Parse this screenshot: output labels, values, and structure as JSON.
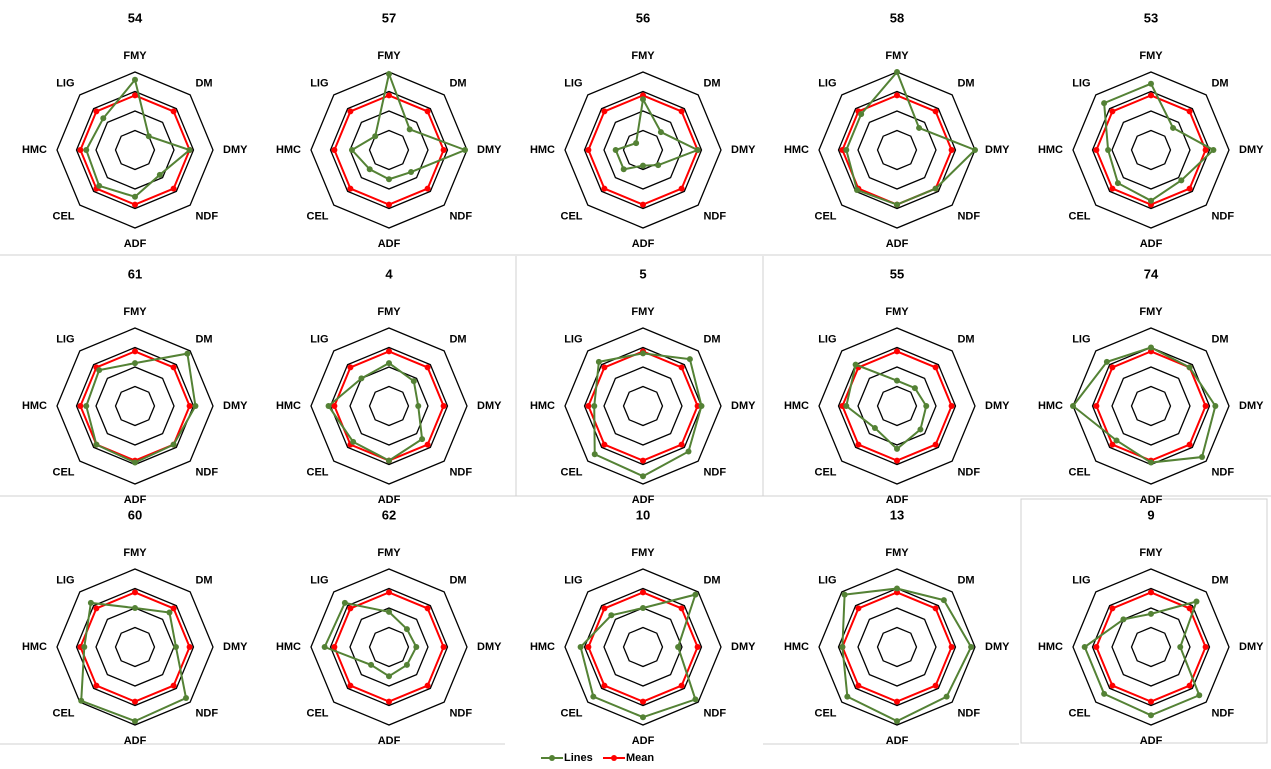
{
  "chart_data": [
    {
      "type": "radar",
      "title": "54",
      "categories": [
        "FMY",
        "DM",
        "DMY",
        "NDF",
        "ADF",
        "CEL",
        "HMC",
        "LIG"
      ],
      "rlim": [
        0,
        4
      ],
      "rticks": [
        1,
        2,
        3,
        4
      ],
      "series": [
        {
          "name": "Lines",
          "color": "#548235",
          "values": [
            3.6,
            1.0,
            2.8,
            1.8,
            2.4,
            2.6,
            2.5,
            2.3
          ]
        },
        {
          "name": "Mean",
          "color": "#ff0000",
          "values": [
            2.8,
            2.8,
            2.8,
            2.8,
            2.8,
            2.8,
            2.8,
            2.8
          ]
        }
      ]
    },
    {
      "type": "radar",
      "title": "57",
      "categories": [
        "FMY",
        "DM",
        "DMY",
        "NDF",
        "ADF",
        "CEL",
        "HMC",
        "LIG"
      ],
      "rlim": [
        0,
        4
      ],
      "rticks": [
        1,
        2,
        3,
        4
      ],
      "series": [
        {
          "name": "Lines",
          "color": "#548235",
          "values": [
            3.9,
            1.5,
            3.9,
            1.6,
            1.5,
            1.4,
            1.9,
            1.0
          ]
        },
        {
          "name": "Mean",
          "color": "#ff0000",
          "values": [
            2.8,
            2.8,
            2.8,
            2.8,
            2.8,
            2.8,
            2.8,
            2.8
          ]
        }
      ]
    },
    {
      "type": "radar",
      "title": "56",
      "categories": [
        "FMY",
        "DM",
        "DMY",
        "NDF",
        "ADF",
        "CEL",
        "HMC",
        "LIG"
      ],
      "rlim": [
        0,
        4
      ],
      "rticks": [
        1,
        2,
        3,
        4
      ],
      "series": [
        {
          "name": "Lines",
          "color": "#548235",
          "values": [
            2.6,
            1.3,
            2.8,
            1.1,
            0.8,
            1.4,
            1.4,
            0.5
          ]
        },
        {
          "name": "Mean",
          "color": "#ff0000",
          "values": [
            2.8,
            2.8,
            2.8,
            2.8,
            2.8,
            2.8,
            2.8,
            2.8
          ]
        }
      ]
    },
    {
      "type": "radar",
      "title": "58",
      "categories": [
        "FMY",
        "DM",
        "DMY",
        "NDF",
        "ADF",
        "CEL",
        "HMC",
        "LIG"
      ],
      "rlim": [
        0,
        4
      ],
      "rticks": [
        1,
        2,
        3,
        4
      ],
      "series": [
        {
          "name": "Lines",
          "color": "#548235",
          "values": [
            4.0,
            1.6,
            4.0,
            2.8,
            2.8,
            2.9,
            2.6,
            2.6
          ]
        },
        {
          "name": "Mean",
          "color": "#ff0000",
          "values": [
            2.8,
            2.8,
            2.8,
            2.8,
            2.8,
            2.8,
            2.8,
            2.8
          ]
        }
      ]
    },
    {
      "type": "radar",
      "title": "53",
      "categories": [
        "FMY",
        "DM",
        "DMY",
        "NDF",
        "ADF",
        "CEL",
        "HMC",
        "LIG"
      ],
      "rlim": [
        0,
        4
      ],
      "rticks": [
        1,
        2,
        3,
        4
      ],
      "series": [
        {
          "name": "Lines",
          "color": "#548235",
          "values": [
            3.4,
            1.6,
            3.2,
            2.2,
            2.6,
            2.4,
            2.2,
            3.4
          ]
        },
        {
          "name": "Mean",
          "color": "#ff0000",
          "values": [
            2.8,
            2.8,
            2.8,
            2.8,
            2.8,
            2.8,
            2.8,
            2.8
          ]
        }
      ]
    },
    {
      "type": "radar",
      "title": "61",
      "categories": [
        "FMY",
        "DM",
        "DMY",
        "NDF",
        "ADF",
        "CEL",
        "HMC",
        "LIG"
      ],
      "rlim": [
        0,
        4
      ],
      "rticks": [
        1,
        2,
        3,
        4
      ],
      "series": [
        {
          "name": "Lines",
          "color": "#548235",
          "values": [
            2.2,
            3.8,
            3.1,
            2.8,
            2.9,
            2.8,
            2.5,
            2.6
          ]
        },
        {
          "name": "Mean",
          "color": "#ff0000",
          "values": [
            2.8,
            2.8,
            2.8,
            2.8,
            2.8,
            2.8,
            2.8,
            2.8
          ]
        }
      ]
    },
    {
      "type": "radar",
      "title": "4",
      "categories": [
        "FMY",
        "DM",
        "DMY",
        "NDF",
        "ADF",
        "CEL",
        "HMC",
        "LIG"
      ],
      "rlim": [
        0,
        4
      ],
      "rticks": [
        1,
        2,
        3,
        4
      ],
      "series": [
        {
          "name": "Lines",
          "color": "#548235",
          "values": [
            2.2,
            1.8,
            1.5,
            2.4,
            2.8,
            2.6,
            3.1,
            2.0
          ]
        },
        {
          "name": "Mean",
          "color": "#ff0000",
          "values": [
            2.8,
            2.8,
            2.8,
            2.8,
            2.8,
            2.8,
            2.8,
            2.8
          ]
        }
      ]
    },
    {
      "type": "radar",
      "title": "5",
      "categories": [
        "FMY",
        "DM",
        "DMY",
        "NDF",
        "ADF",
        "CEL",
        "HMC",
        "LIG"
      ],
      "rlim": [
        0,
        4
      ],
      "rticks": [
        1,
        2,
        3,
        4
      ],
      "series": [
        {
          "name": "Lines",
          "color": "#548235",
          "values": [
            2.7,
            3.4,
            3.0,
            3.3,
            3.6,
            3.5,
            2.5,
            3.2
          ]
        },
        {
          "name": "Mean",
          "color": "#ff0000",
          "values": [
            2.8,
            2.8,
            2.8,
            2.8,
            2.8,
            2.8,
            2.8,
            2.8
          ]
        }
      ]
    },
    {
      "type": "radar",
      "title": "55",
      "categories": [
        "FMY",
        "DM",
        "DMY",
        "NDF",
        "ADF",
        "CEL",
        "HMC",
        "LIG"
      ],
      "rlim": [
        0,
        4
      ],
      "rticks": [
        1,
        2,
        3,
        4
      ],
      "series": [
        {
          "name": "Lines",
          "color": "#548235",
          "values": [
            1.3,
            1.3,
            1.5,
            1.7,
            2.2,
            1.6,
            2.6,
            3.0
          ]
        },
        {
          "name": "Mean",
          "color": "#ff0000",
          "values": [
            2.8,
            2.8,
            2.8,
            2.8,
            2.8,
            2.8,
            2.8,
            2.8
          ]
        }
      ]
    },
    {
      "type": "radar",
      "title": "74",
      "categories": [
        "FMY",
        "DM",
        "DMY",
        "NDF",
        "ADF",
        "CEL",
        "HMC",
        "LIG"
      ],
      "rlim": [
        0,
        4
      ],
      "rticks": [
        1,
        2,
        3,
        4
      ],
      "series": [
        {
          "name": "Lines",
          "color": "#548235",
          "values": [
            3.0,
            2.8,
            3.3,
            3.7,
            2.9,
            2.5,
            4.0,
            3.2
          ]
        },
        {
          "name": "Mean",
          "color": "#ff0000",
          "values": [
            2.8,
            2.8,
            2.8,
            2.8,
            2.8,
            2.8,
            2.8,
            2.8
          ]
        }
      ]
    },
    {
      "type": "radar",
      "title": "60",
      "categories": [
        "FMY",
        "DM",
        "DMY",
        "NDF",
        "ADF",
        "CEL",
        "HMC",
        "LIG"
      ],
      "rlim": [
        0,
        4
      ],
      "rticks": [
        1,
        2,
        3,
        4
      ],
      "series": [
        {
          "name": "Lines",
          "color": "#548235",
          "values": [
            2.0,
            2.5,
            2.1,
            3.7,
            3.8,
            3.9,
            2.6,
            3.2
          ]
        },
        {
          "name": "Mean",
          "color": "#ff0000",
          "values": [
            2.8,
            2.8,
            2.8,
            2.8,
            2.8,
            2.8,
            2.8,
            2.8
          ]
        }
      ]
    },
    {
      "type": "radar",
      "title": "62",
      "categories": [
        "FMY",
        "DM",
        "DMY",
        "NDF",
        "ADF",
        "CEL",
        "HMC",
        "LIG"
      ],
      "rlim": [
        0,
        4
      ],
      "rticks": [
        1,
        2,
        3,
        4
      ],
      "series": [
        {
          "name": "Lines",
          "color": "#548235",
          "values": [
            1.8,
            1.3,
            1.4,
            1.3,
            1.5,
            1.3,
            3.3,
            3.2
          ]
        },
        {
          "name": "Mean",
          "color": "#ff0000",
          "values": [
            2.8,
            2.8,
            2.8,
            2.8,
            2.8,
            2.8,
            2.8,
            2.8
          ]
        }
      ]
    },
    {
      "type": "radar",
      "title": "10",
      "categories": [
        "FMY",
        "DM",
        "DMY",
        "NDF",
        "ADF",
        "CEL",
        "HMC",
        "LIG"
      ],
      "rlim": [
        0,
        4
      ],
      "rticks": [
        1,
        2,
        3,
        4
      ],
      "series": [
        {
          "name": "Lines",
          "color": "#548235",
          "values": [
            2.0,
            3.8,
            1.8,
            3.8,
            3.6,
            3.6,
            3.2,
            2.3
          ]
        },
        {
          "name": "Mean",
          "color": "#ff0000",
          "values": [
            2.8,
            2.8,
            2.8,
            2.8,
            2.8,
            2.8,
            2.8,
            2.8
          ]
        }
      ]
    },
    {
      "type": "radar",
      "title": "13",
      "categories": [
        "FMY",
        "DM",
        "DMY",
        "NDF",
        "ADF",
        "CEL",
        "HMC",
        "LIG"
      ],
      "rlim": [
        0,
        4
      ],
      "rticks": [
        1,
        2,
        3,
        4
      ],
      "series": [
        {
          "name": "Lines",
          "color": "#548235",
          "values": [
            3.0,
            3.4,
            3.8,
            3.6,
            3.8,
            3.6,
            2.8,
            3.8
          ]
        },
        {
          "name": "Mean",
          "color": "#ff0000",
          "values": [
            2.8,
            2.8,
            2.8,
            2.8,
            2.8,
            2.8,
            2.8,
            2.8
          ]
        }
      ]
    },
    {
      "type": "radar",
      "title": "9",
      "categories": [
        "FMY",
        "DM",
        "DMY",
        "NDF",
        "ADF",
        "CEL",
        "HMC",
        "LIG"
      ],
      "rlim": [
        0,
        4
      ],
      "rticks": [
        1,
        2,
        3,
        4
      ],
      "series": [
        {
          "name": "Lines",
          "color": "#548235",
          "values": [
            1.7,
            3.3,
            1.5,
            3.5,
            3.5,
            3.4,
            3.4,
            2.0
          ]
        },
        {
          "name": "Mean",
          "color": "#ff0000",
          "values": [
            2.8,
            2.8,
            2.8,
            2.8,
            2.8,
            2.8,
            2.8,
            2.8
          ]
        }
      ]
    }
  ]
}
